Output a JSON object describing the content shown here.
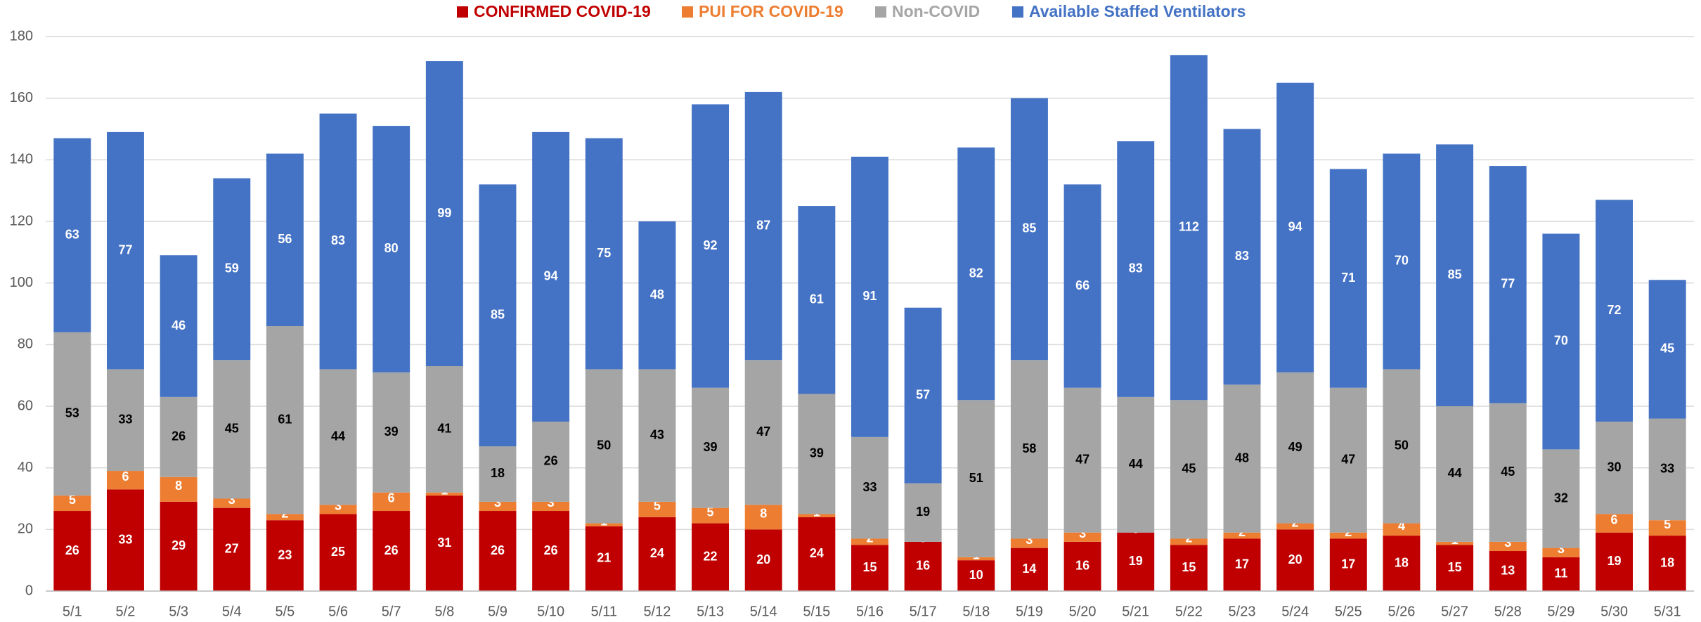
{
  "chart_data": {
    "type": "stacked_bar",
    "categories": [
      "5/1",
      "5/2",
      "5/3",
      "5/4",
      "5/5",
      "5/6",
      "5/7",
      "5/8",
      "5/9",
      "5/10",
      "5/11",
      "5/12",
      "5/13",
      "5/14",
      "5/15",
      "5/16",
      "5/17",
      "5/18",
      "5/19",
      "5/20",
      "5/21",
      "5/22",
      "5/23",
      "5/24",
      "5/25",
      "5/26",
      "5/27",
      "5/28",
      "5/29",
      "5/30",
      "5/31"
    ],
    "series": [
      {
        "name": "CONFIRMED COVID-19",
        "color": "#c00000",
        "values": [
          26,
          33,
          29,
          27,
          23,
          25,
          26,
          31,
          26,
          26,
          21,
          24,
          22,
          20,
          24,
          15,
          16,
          10,
          14,
          16,
          19,
          15,
          17,
          20,
          17,
          18,
          15,
          13,
          11,
          19,
          18
        ]
      },
      {
        "name": "PUI FOR COVID-19",
        "color": "#ed7d31",
        "values": [
          5,
          6,
          8,
          3,
          2,
          3,
          6,
          1,
          3,
          3,
          1,
          5,
          5,
          8,
          1,
          2,
          0,
          1,
          3,
          3,
          0,
          2,
          2,
          2,
          2,
          4,
          1,
          3,
          3,
          6,
          5
        ]
      },
      {
        "name": "Non-COVID",
        "color": "#a5a5a5",
        "values": [
          53,
          33,
          26,
          45,
          61,
          44,
          39,
          41,
          18,
          26,
          50,
          43,
          39,
          47,
          39,
          33,
          19,
          51,
          58,
          47,
          44,
          45,
          48,
          49,
          47,
          50,
          44,
          45,
          32,
          30,
          33
        ]
      },
      {
        "name": "Available Staffed Ventilators",
        "color": "#4472c4",
        "values": [
          63,
          77,
          46,
          59,
          56,
          83,
          80,
          99,
          85,
          94,
          75,
          48,
          92,
          87,
          61,
          91,
          57,
          82,
          85,
          66,
          83,
          112,
          83,
          94,
          71,
          70,
          85,
          77,
          70,
          72,
          45
        ]
      }
    ],
    "ylim": [
      0,
      180
    ],
    "yticks": [
      0,
      20,
      40,
      60,
      80,
      100,
      120,
      140,
      160,
      180
    ],
    "grid": true,
    "legend": "top"
  }
}
